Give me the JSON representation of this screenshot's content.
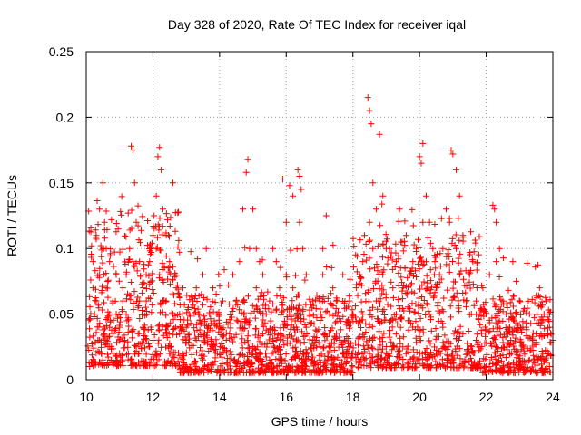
{
  "chart_data": {
    "type": "scatter",
    "title": "Day 328 of 2020, Rate Of TEC Index for receiver iqal",
    "xlabel": "GPS time / hours",
    "ylabel": "ROTI / TECUs",
    "xlim": [
      10,
      24
    ],
    "ylim": [
      0,
      0.25
    ],
    "x_ticks": [
      10,
      12,
      14,
      16,
      18,
      20,
      22,
      24
    ],
    "x_tick_labels": [
      "10",
      "12",
      "14",
      "16",
      "18",
      "20",
      "22",
      "24"
    ],
    "y_ticks": [
      0,
      0.05,
      0.1,
      0.15,
      0.2,
      0.25
    ],
    "y_tick_labels": [
      "0",
      "0.05",
      "0.1",
      "0.15",
      "0.2",
      "0.25"
    ],
    "grid": true,
    "marker": "+",
    "color": "#ff0000",
    "series": [
      {
        "points": [
          [
            10.3,
            0.11
          ],
          [
            10.4,
            0.13
          ],
          [
            10.5,
            0.15
          ],
          [
            10.55,
            0.12
          ],
          [
            10.6,
            0.1
          ],
          [
            10.7,
            0.09
          ],
          [
            10.8,
            0.06
          ],
          [
            10.9,
            0.05
          ],
          [
            10.2,
            0.07
          ],
          [
            10.25,
            0.05
          ],
          [
            10.35,
            0.03
          ],
          [
            10.45,
            0.02
          ],
          [
            10.6,
            0.03
          ],
          [
            10.8,
            0.02
          ],
          [
            11.0,
            0.04
          ],
          [
            11.1,
            0.06
          ],
          [
            11.2,
            0.08
          ],
          [
            11.3,
            0.1
          ],
          [
            11.35,
            0.178
          ],
          [
            11.4,
            0.175
          ],
          [
            11.45,
            0.15
          ],
          [
            11.5,
            0.12
          ],
          [
            11.6,
            0.09
          ],
          [
            11.7,
            0.07
          ],
          [
            11.8,
            0.06
          ],
          [
            11.9,
            0.09
          ],
          [
            12.0,
            0.11
          ],
          [
            12.1,
            0.14
          ],
          [
            12.15,
            0.17
          ],
          [
            12.2,
            0.177
          ],
          [
            12.25,
            0.16
          ],
          [
            12.3,
            0.13
          ],
          [
            12.4,
            0.11
          ],
          [
            12.5,
            0.09
          ],
          [
            12.6,
            0.15
          ],
          [
            12.7,
            0.07
          ],
          [
            12.8,
            0.05
          ],
          [
            12.9,
            0.04
          ],
          [
            13.0,
            0.03
          ],
          [
            13.2,
            0.06
          ],
          [
            13.4,
            0.05
          ],
          [
            13.5,
            0.08
          ],
          [
            13.6,
            0.1
          ],
          [
            13.8,
            0.07
          ],
          [
            14.0,
            0.04
          ],
          [
            14.2,
            0.03
          ],
          [
            14.5,
            0.06
          ],
          [
            14.7,
            0.13
          ],
          [
            14.8,
            0.158
          ],
          [
            14.85,
            0.168
          ],
          [
            15.0,
            0.13
          ],
          [
            15.1,
            0.1
          ],
          [
            15.2,
            0.09
          ],
          [
            15.4,
            0.05
          ],
          [
            15.6,
            0.1
          ],
          [
            15.8,
            0.07
          ],
          [
            15.9,
            0.153
          ],
          [
            16.0,
            0.12
          ],
          [
            16.1,
            0.148
          ],
          [
            16.2,
            0.14
          ],
          [
            16.35,
            0.16
          ],
          [
            16.4,
            0.155
          ],
          [
            16.45,
            0.145
          ],
          [
            16.5,
            0.1
          ],
          [
            16.7,
            0.05
          ],
          [
            16.9,
            0.03
          ],
          [
            17.0,
            0.06
          ],
          [
            17.1,
            0.1
          ],
          [
            17.2,
            0.125
          ],
          [
            17.4,
            0.07
          ],
          [
            17.6,
            0.03
          ],
          [
            17.8,
            0.02
          ],
          [
            18.0,
            0.05
          ],
          [
            18.2,
            0.08
          ],
          [
            18.35,
            0.11
          ],
          [
            18.45,
            0.215
          ],
          [
            18.5,
            0.205
          ],
          [
            18.55,
            0.195
          ],
          [
            18.6,
            0.15
          ],
          [
            18.7,
            0.13
          ],
          [
            18.8,
            0.187
          ],
          [
            18.9,
            0.14
          ],
          [
            19.0,
            0.1
          ],
          [
            19.2,
            0.07
          ],
          [
            19.4,
            0.13
          ],
          [
            19.6,
            0.11
          ],
          [
            19.8,
            0.09
          ],
          [
            20.0,
            0.17
          ],
          [
            20.05,
            0.165
          ],
          [
            20.1,
            0.18
          ],
          [
            20.2,
            0.14
          ],
          [
            20.3,
            0.12
          ],
          [
            20.4,
            0.1
          ],
          [
            20.6,
            0.08
          ],
          [
            20.8,
            0.13
          ],
          [
            20.95,
            0.175
          ],
          [
            21.0,
            0.172
          ],
          [
            21.1,
            0.16
          ],
          [
            21.2,
            0.14
          ],
          [
            21.3,
            0.11
          ],
          [
            21.5,
            0.08
          ],
          [
            21.7,
            0.06
          ],
          [
            21.9,
            0.07
          ],
          [
            22.0,
            0.05
          ],
          [
            22.2,
            0.133
          ],
          [
            22.25,
            0.13
          ],
          [
            22.3,
            0.12
          ],
          [
            22.4,
            0.1
          ],
          [
            22.6,
            0.05
          ],
          [
            22.8,
            0.09
          ],
          [
            22.9,
            0.075
          ],
          [
            23.0,
            0.06
          ],
          [
            23.2,
            0.04
          ],
          [
            23.4,
            0.03
          ],
          [
            23.6,
            0.07
          ],
          [
            23.8,
            0.06
          ],
          [
            23.9,
            0.04
          ],
          [
            24.0,
            0.03
          ],
          [
            10.1,
            0.01
          ],
          [
            10.5,
            0.015
          ],
          [
            11.0,
            0.02
          ],
          [
            11.5,
            0.025
          ],
          [
            12.0,
            0.03
          ],
          [
            12.5,
            0.02
          ],
          [
            13.0,
            0.01
          ],
          [
            13.5,
            0.015
          ],
          [
            14.0,
            0.02
          ],
          [
            14.5,
            0.01
          ],
          [
            15.0,
            0.02
          ],
          [
            15.5,
            0.015
          ],
          [
            16.0,
            0.01
          ],
          [
            16.5,
            0.02
          ],
          [
            17.0,
            0.015
          ],
          [
            17.5,
            0.01
          ],
          [
            18.0,
            0.02
          ],
          [
            18.5,
            0.03
          ],
          [
            19.0,
            0.02
          ],
          [
            19.5,
            0.025
          ],
          [
            20.0,
            0.03
          ],
          [
            20.5,
            0.02
          ],
          [
            21.0,
            0.015
          ],
          [
            21.5,
            0.02
          ],
          [
            22.0,
            0.01
          ],
          [
            22.5,
            0.005
          ],
          [
            23.0,
            0.01
          ],
          [
            23.5,
            0.005
          ],
          [
            23.9,
            0.01
          ],
          [
            10.7,
            0.04
          ],
          [
            11.2,
            0.05
          ],
          [
            11.7,
            0.04
          ],
          [
            12.3,
            0.06
          ],
          [
            12.8,
            0.035
          ],
          [
            13.3,
            0.03
          ],
          [
            13.8,
            0.025
          ],
          [
            14.3,
            0.035
          ],
          [
            14.9,
            0.045
          ],
          [
            15.3,
            0.035
          ],
          [
            15.7,
            0.03
          ],
          [
            16.3,
            0.04
          ],
          [
            16.8,
            0.03
          ],
          [
            17.3,
            0.025
          ],
          [
            17.7,
            0.02
          ],
          [
            18.3,
            0.05
          ],
          [
            18.7,
            0.06
          ],
          [
            19.3,
            0.05
          ],
          [
            19.7,
            0.045
          ],
          [
            20.3,
            0.05
          ],
          [
            20.7,
            0.04
          ],
          [
            21.3,
            0.035
          ],
          [
            21.7,
            0.03
          ],
          [
            22.3,
            0.025
          ],
          [
            22.7,
            0.02
          ],
          [
            23.3,
            0.015
          ],
          [
            23.7,
            0.02
          ],
          [
            10.2,
            0.09
          ],
          [
            10.3,
            0.06
          ],
          [
            10.4,
            0.08
          ],
          [
            10.5,
            0.1
          ],
          [
            10.6,
            0.07
          ],
          [
            10.7,
            0.05
          ],
          [
            10.9,
            0.08
          ],
          [
            11.1,
            0.07
          ],
          [
            11.4,
            0.09
          ],
          [
            11.6,
            0.06
          ],
          [
            11.8,
            0.08
          ],
          [
            12.1,
            0.1
          ],
          [
            12.2,
            0.08
          ],
          [
            12.4,
            0.06
          ],
          [
            12.6,
            0.05
          ],
          [
            12.9,
            0.07
          ],
          [
            13.1,
            0.05
          ],
          [
            13.3,
            0.07
          ],
          [
            13.7,
            0.05
          ],
          [
            14.1,
            0.06
          ],
          [
            14.4,
            0.08
          ],
          [
            14.6,
            0.09
          ],
          [
            14.9,
            0.1
          ],
          [
            15.1,
            0.07
          ],
          [
            15.3,
            0.08
          ],
          [
            15.5,
            0.06
          ],
          [
            15.7,
            0.09
          ],
          [
            16.0,
            0.08
          ],
          [
            16.2,
            0.07
          ],
          [
            16.4,
            0.12
          ],
          [
            16.6,
            0.08
          ],
          [
            16.8,
            0.06
          ],
          [
            17.1,
            0.08
          ],
          [
            17.3,
            0.05
          ],
          [
            17.5,
            0.06
          ],
          [
            17.7,
            0.08
          ],
          [
            17.9,
            0.06
          ],
          [
            18.1,
            0.07
          ],
          [
            18.3,
            0.09
          ],
          [
            18.5,
            0.12
          ],
          [
            18.6,
            0.1
          ],
          [
            18.9,
            0.08
          ],
          [
            19.1,
            0.1
          ],
          [
            19.3,
            0.09
          ],
          [
            19.5,
            0.07
          ],
          [
            19.7,
            0.08
          ],
          [
            19.9,
            0.1
          ],
          [
            20.1,
            0.12
          ],
          [
            20.2,
            0.09
          ],
          [
            20.5,
            0.07
          ],
          [
            20.7,
            0.1
          ],
          [
            20.9,
            0.12
          ],
          [
            21.1,
            0.1
          ],
          [
            21.2,
            0.08
          ],
          [
            21.4,
            0.06
          ],
          [
            21.6,
            0.09
          ],
          [
            21.8,
            0.05
          ],
          [
            22.1,
            0.08
          ],
          [
            22.3,
            0.09
          ],
          [
            22.5,
            0.06
          ],
          [
            22.7,
            0.04
          ],
          [
            22.9,
            0.05
          ],
          [
            23.1,
            0.04
          ],
          [
            23.3,
            0.05
          ],
          [
            23.5,
            0.035
          ],
          [
            23.7,
            0.045
          ],
          [
            23.9,
            0.05
          ]
        ]
      }
    ]
  }
}
